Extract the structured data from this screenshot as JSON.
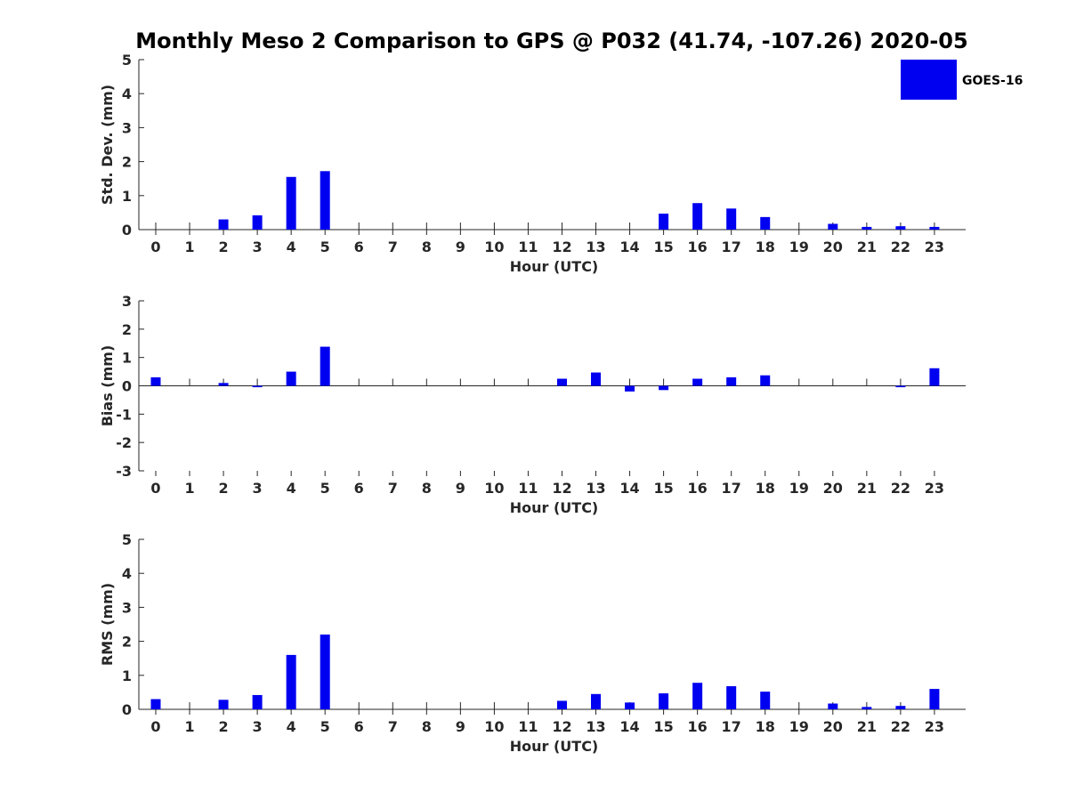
{
  "title": "Monthly Meso 2 Comparison to GPS @ P032 (41.74, -107.26) 2020-05",
  "legend": {
    "label": "GOES-16",
    "position": "top-right"
  },
  "colors": {
    "bar": "#0000f0",
    "axis": "#262626",
    "text": "#262626"
  },
  "chart_data": [
    {
      "type": "bar",
      "name": "std",
      "title": "",
      "xlabel": "Hour (UTC)",
      "ylabel": "Std. Dev. (mm)",
      "categories": [
        "0",
        "1",
        "2",
        "3",
        "4",
        "5",
        "6",
        "7",
        "8",
        "9",
        "10",
        "11",
        "12",
        "13",
        "14",
        "15",
        "16",
        "17",
        "18",
        "19",
        "20",
        "21",
        "22",
        "23"
      ],
      "series": [
        {
          "name": "GOES-16",
          "values": [
            0,
            0,
            0.3,
            0.42,
            1.55,
            1.72,
            0,
            0,
            0,
            0,
            0,
            0,
            0,
            0,
            0,
            0.47,
            0.78,
            0.62,
            0.37,
            0,
            0.17,
            0.08,
            0.1,
            0.08
          ]
        }
      ],
      "ylim": [
        0,
        5
      ],
      "yticks": [
        "0",
        "1",
        "2",
        "3",
        "4",
        "5"
      ]
    },
    {
      "type": "bar",
      "name": "bias",
      "title": "",
      "xlabel": "Hour (UTC)",
      "ylabel": "Bias (mm)",
      "categories": [
        "0",
        "1",
        "2",
        "3",
        "4",
        "5",
        "6",
        "7",
        "8",
        "9",
        "10",
        "11",
        "12",
        "13",
        "14",
        "15",
        "16",
        "17",
        "18",
        "19",
        "20",
        "21",
        "22",
        "23"
      ],
      "series": [
        {
          "name": "GOES-16",
          "values": [
            0.3,
            0,
            0.1,
            -0.05,
            0.5,
            1.38,
            0,
            0,
            0,
            0,
            0,
            0,
            0.25,
            0.47,
            -0.2,
            -0.15,
            0.25,
            0.3,
            0.37,
            0,
            0,
            0,
            -0.05,
            0.62
          ]
        }
      ],
      "ylim": [
        -3,
        3
      ],
      "yticks": [
        "-3",
        "-2",
        "-1",
        "0",
        "1",
        "2",
        "3"
      ]
    },
    {
      "type": "bar",
      "name": "rms",
      "title": "",
      "xlabel": "Hour (UTC)",
      "ylabel": "RMS (mm)",
      "categories": [
        "0",
        "1",
        "2",
        "3",
        "4",
        "5",
        "6",
        "7",
        "8",
        "9",
        "10",
        "11",
        "12",
        "13",
        "14",
        "15",
        "16",
        "17",
        "18",
        "19",
        "20",
        "21",
        "22",
        "23"
      ],
      "series": [
        {
          "name": "GOES-16",
          "values": [
            0.3,
            0,
            0.28,
            0.42,
            1.6,
            2.2,
            0,
            0,
            0,
            0,
            0,
            0,
            0.25,
            0.45,
            0.2,
            0.47,
            0.78,
            0.68,
            0.52,
            0,
            0.17,
            0.07,
            0.1,
            0.6
          ]
        }
      ],
      "ylim": [
        0,
        5
      ],
      "yticks": [
        "0",
        "1",
        "2",
        "3",
        "4",
        "5"
      ]
    }
  ]
}
